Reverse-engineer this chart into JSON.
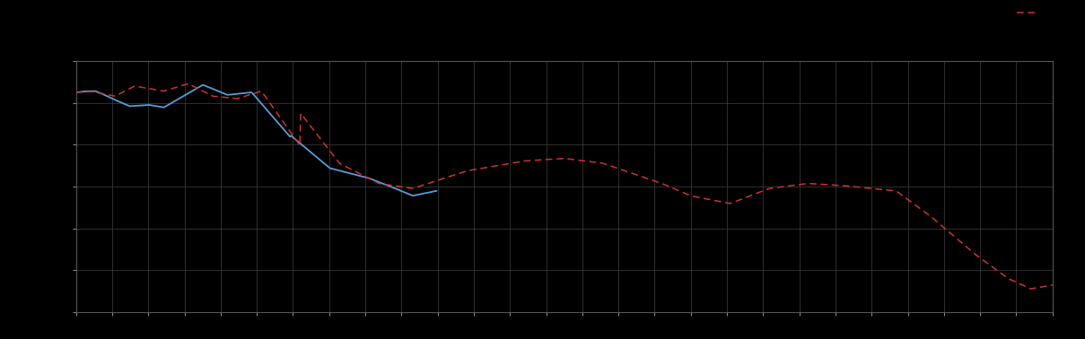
{
  "background_color": "#000000",
  "axes_facecolor": "#000000",
  "grid_color": "#404040",
  "line1_color": "#5b9bd5",
  "line2_color": "#cc3333",
  "figsize": [
    12.09,
    3.78
  ],
  "dpi": 100,
  "ylim": [
    0,
    1
  ],
  "xlim": [
    0,
    1
  ],
  "n_xgrid": 27,
  "n_ygrid": 6
}
